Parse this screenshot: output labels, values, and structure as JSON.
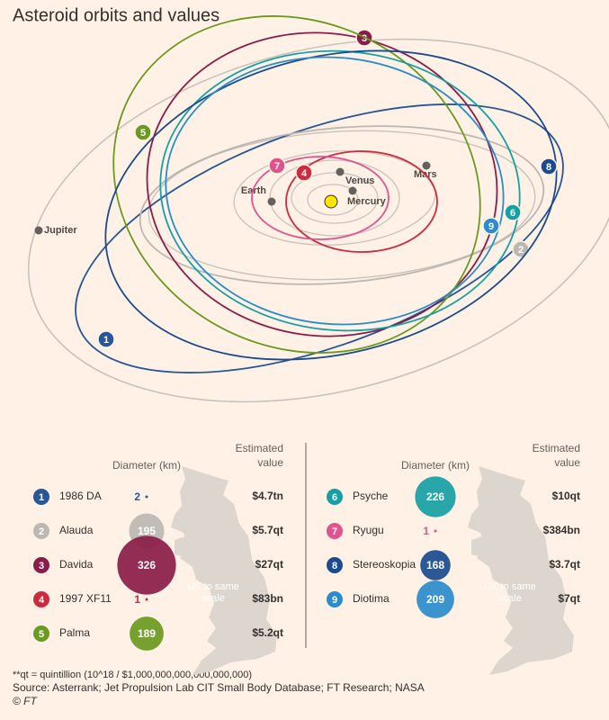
{
  "title": "Asteroid orbits and values",
  "planets": [
    "Earth",
    "Venus",
    "Mercury",
    "Mars",
    "Jupiter"
  ],
  "tables": [
    {
      "diameter_header": "Diameter (km)",
      "value_header": "Estimated value",
      "uk_label": "UK to same scale",
      "rows": [
        {
          "number": "1",
          "name": "1986 DA",
          "diameter": 2,
          "value": "$4.7tn",
          "color": "#27569b"
        },
        {
          "number": "2",
          "name": "Alauda",
          "diameter": 195,
          "value": "$5.7qt",
          "color": "#bdb7b2"
        },
        {
          "number": "3",
          "name": "Davida",
          "diameter": 326,
          "value": "$27qt",
          "color": "#8a1c48"
        },
        {
          "number": "4",
          "name": "1997 XF11",
          "diameter": 1,
          "value": "$83bn",
          "color": "#cc2b3f"
        },
        {
          "number": "5",
          "name": "Palma",
          "diameter": 189,
          "value": "$5.2qt",
          "color": "#6a9a20"
        }
      ]
    },
    {
      "diameter_header": "Diameter (km)",
      "value_header": "Estimated value",
      "uk_label": "UK to same scale",
      "rows": [
        {
          "number": "6",
          "name": "Psyche",
          "diameter": 226,
          "value": "$10qt",
          "color": "#16a0a5"
        },
        {
          "number": "7",
          "name": "Ryugu",
          "diameter": 1,
          "value": "$384bn",
          "color": "#e0548e"
        },
        {
          "number": "8",
          "name": "Stereoskopia",
          "diameter": 168,
          "value": "$3.7qt",
          "color": "#1b4b8f"
        },
        {
          "number": "9",
          "name": "Diotima",
          "diameter": 209,
          "value": "$7qt",
          "color": "#2a8ccc"
        }
      ]
    }
  ],
  "footnote": "**qt = quintillion (10^18 / $1,000,000,000,000,000,000)",
  "source": "Source: Asterrank; Jet Propulsion Lab CIT Small Body Database; FT Research; NASA",
  "credit": "© FT"
}
